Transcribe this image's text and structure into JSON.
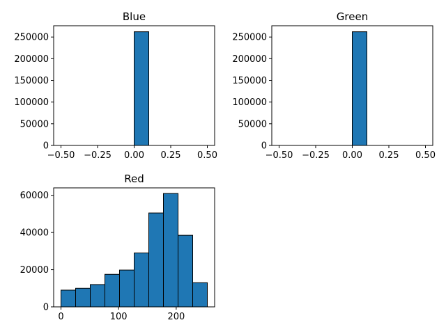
{
  "chart_data": [
    {
      "type": "bar",
      "title": "Blue",
      "xlabel": "",
      "ylabel": "",
      "xlim": [
        -0.55,
        0.55
      ],
      "ylim": [
        0,
        276000
      ],
      "grid": false,
      "xticks": [
        -0.5,
        -0.25,
        0.0,
        0.25,
        0.5
      ],
      "xtick_labels": [
        "−0.50",
        "−0.25",
        "0.00",
        "0.25",
        "0.50"
      ],
      "yticks": [
        0,
        50000,
        100000,
        150000,
        200000,
        250000
      ],
      "ytick_labels": [
        "0",
        "50000",
        "100000",
        "150000",
        "200000",
        "250000"
      ],
      "bins": [
        {
          "x0": 0.0,
          "x1": 0.1,
          "count": 262144
        }
      ]
    },
    {
      "type": "bar",
      "title": "Green",
      "xlabel": "",
      "ylabel": "",
      "xlim": [
        -0.55,
        0.55
      ],
      "ylim": [
        0,
        276000
      ],
      "grid": false,
      "xticks": [
        -0.5,
        -0.25,
        0.0,
        0.25,
        0.5
      ],
      "xtick_labels": [
        "−0.50",
        "−0.25",
        "0.00",
        "0.25",
        "0.50"
      ],
      "yticks": [
        0,
        50000,
        100000,
        150000,
        200000,
        250000
      ],
      "ytick_labels": [
        "0",
        "50000",
        "100000",
        "150000",
        "200000",
        "250000"
      ],
      "bins": [
        {
          "x0": 0.0,
          "x1": 0.1,
          "count": 262144
        }
      ]
    },
    {
      "type": "bar",
      "title": "Red",
      "xlabel": "",
      "ylabel": "",
      "xlim": [
        -12.7,
        266.7
      ],
      "ylim": [
        0,
        64000
      ],
      "grid": false,
      "xticks": [
        0,
        100,
        200
      ],
      "xtick_labels": [
        "0",
        "100",
        "200"
      ],
      "yticks": [
        0,
        20000,
        40000,
        60000
      ],
      "ytick_labels": [
        "0",
        "20000",
        "40000",
        "60000"
      ],
      "bins": [
        {
          "x0": 0.0,
          "x1": 25.4,
          "count": 9000
        },
        {
          "x0": 25.4,
          "x1": 50.8,
          "count": 10000
        },
        {
          "x0": 50.8,
          "x1": 76.2,
          "count": 12000
        },
        {
          "x0": 76.2,
          "x1": 101.6,
          "count": 17500
        },
        {
          "x0": 101.6,
          "x1": 127.0,
          "count": 19800
        },
        {
          "x0": 127.0,
          "x1": 152.4,
          "count": 29000
        },
        {
          "x0": 152.4,
          "x1": 177.8,
          "count": 50500
        },
        {
          "x0": 177.8,
          "x1": 203.2,
          "count": 61000
        },
        {
          "x0": 203.2,
          "x1": 228.6,
          "count": 38500
        },
        {
          "x0": 228.6,
          "x1": 254.0,
          "count": 13000
        }
      ]
    }
  ],
  "colors": {
    "bar_fill": "#1f77b4",
    "bar_edge": "#000000",
    "axes": "#000000",
    "background": "#ffffff"
  }
}
